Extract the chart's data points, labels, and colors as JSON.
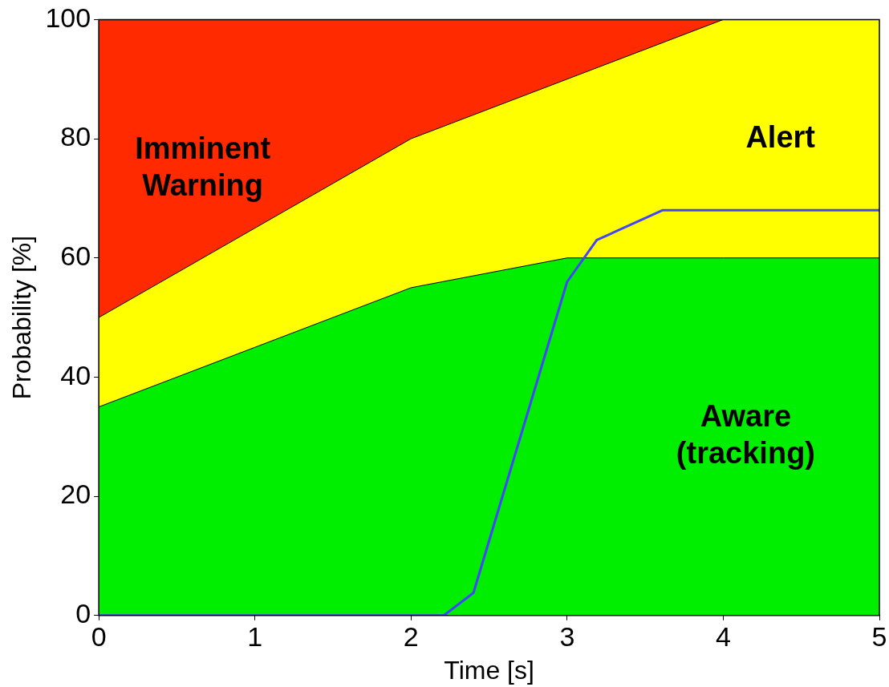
{
  "chart_data": {
    "type": "area",
    "stacked": true,
    "xlabel": "Time [s]",
    "ylabel": "Probability [%]",
    "x": [
      0,
      1,
      2,
      3,
      3.2,
      4,
      5
    ],
    "series": [
      {
        "name": "Aware (tracking)",
        "color": "#00ee00",
        "values": [
          35,
          45,
          55,
          60,
          60,
          60,
          60
        ]
      },
      {
        "name": "Alert",
        "color": "#ffff00",
        "values": [
          15,
          20,
          25,
          30,
          32,
          40,
          40
        ]
      },
      {
        "name": "Imminent Warning",
        "color": "#ff2a00",
        "values": [
          50,
          35,
          20,
          10,
          8,
          0,
          0
        ]
      },
      {
        "type": "line",
        "color": "#4444ff",
        "x": [
          0,
          2.21,
          2.4,
          3.0,
          3.19,
          3.61,
          5
        ],
        "values": [
          0,
          0,
          3.8,
          56,
          63,
          68,
          68
        ]
      }
    ],
    "xlim": [
      0,
      5
    ],
    "ylim": [
      0,
      100
    ],
    "xticks": [
      0,
      1,
      2,
      3,
      4,
      5
    ],
    "yticks": [
      0,
      20,
      40,
      60,
      80,
      100
    ],
    "grid": false
  }
}
